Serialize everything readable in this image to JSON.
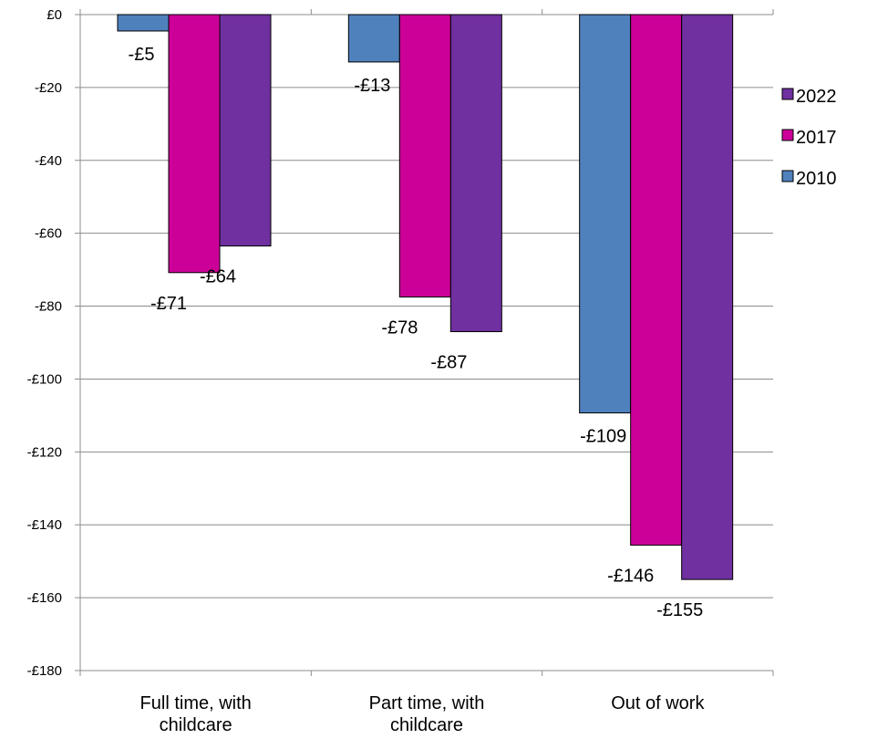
{
  "chart_data": {
    "type": "bar",
    "categories": [
      [
        "Full time, with",
        "childcare"
      ],
      [
        "Part time, with",
        "childcare"
      ],
      [
        "Out of work"
      ]
    ],
    "series": [
      {
        "name": "2010",
        "color": "#4F81BD",
        "values": [
          -4.5,
          -13,
          -109.3
        ],
        "labels": [
          "-£5",
          "-£13",
          "-£109"
        ]
      },
      {
        "name": "2017",
        "color": "#CC0099",
        "values": [
          -70.8,
          -77.5,
          -145.6
        ],
        "labels": [
          "-£71",
          "-£78",
          "-£146"
        ]
      },
      {
        "name": "2022",
        "color": "#7030A0",
        "values": [
          -63.5,
          -87,
          -155
        ],
        "labels": [
          "-£64",
          "-£87",
          "-£155"
        ]
      }
    ],
    "y_ticks": [
      {
        "value": 0,
        "label": "£0"
      },
      {
        "value": -20,
        "label": "-£20"
      },
      {
        "value": -40,
        "label": "-£40"
      },
      {
        "value": -60,
        "label": "-£60"
      },
      {
        "value": -80,
        "label": "-£80"
      },
      {
        "value": -100,
        "label": "-£100"
      },
      {
        "value": -120,
        "label": "-£120"
      },
      {
        "value": -140,
        "label": "-£140"
      },
      {
        "value": -160,
        "label": "-£160"
      },
      {
        "value": -180,
        "label": "-£180"
      }
    ],
    "ylim": [
      -180,
      0
    ],
    "grid": true,
    "legend_position": "right",
    "legend_order": [
      "2022",
      "2017",
      "2010"
    ]
  }
}
